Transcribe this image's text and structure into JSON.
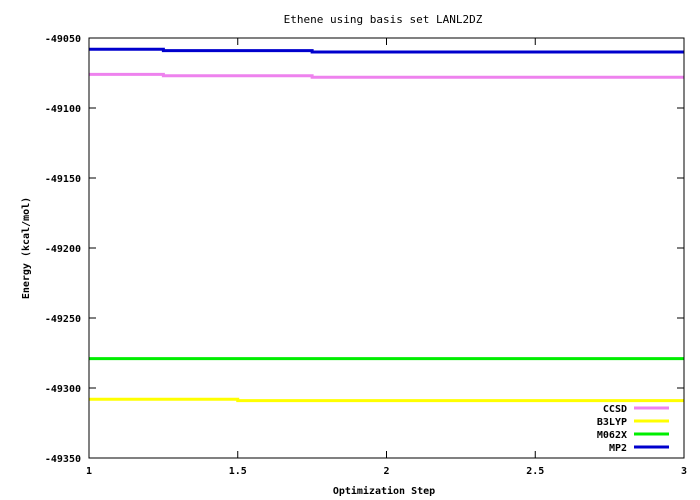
{
  "chart_data": {
    "type": "line",
    "title": "Ethene using basis set LANL2DZ",
    "xlabel": "Optimization Step",
    "ylabel": "Energy (kcal/mol)",
    "xlim": [
      1,
      3
    ],
    "ylim": [
      -49350,
      -49050
    ],
    "x_ticks": [
      1,
      1.5,
      2,
      2.5,
      3
    ],
    "x_tick_labels": [
      "1",
      "1.5",
      "2",
      "2.5",
      "3"
    ],
    "y_ticks": [
      -49050,
      -49100,
      -49150,
      -49200,
      -49250,
      -49300,
      -49350
    ],
    "y_tick_labels": [
      "-49050",
      "-49100",
      "-49150",
      "-49200",
      "-49250",
      "-49300",
      "-49350"
    ],
    "grid": false,
    "legend_position": "bottom-right",
    "series": [
      {
        "name": "CCSD",
        "color": "#ee82ee",
        "x": [
          1,
          1.25,
          1.75,
          3
        ],
        "y": [
          -49076,
          -49077,
          -49078,
          -49078
        ]
      },
      {
        "name": "B3LYP",
        "color": "#ffff00",
        "x": [
          1,
          1.5,
          3
        ],
        "y": [
          -49308,
          -49309,
          -49309
        ]
      },
      {
        "name": "M062X",
        "color": "#00ee00",
        "x": [
          1,
          3
        ],
        "y": [
          -49279,
          -49279
        ]
      },
      {
        "name": "MP2",
        "color": "#0000cd",
        "x": [
          1,
          1.25,
          1.75,
          3
        ],
        "y": [
          -49058,
          -49059,
          -49060,
          -49060
        ]
      }
    ]
  }
}
